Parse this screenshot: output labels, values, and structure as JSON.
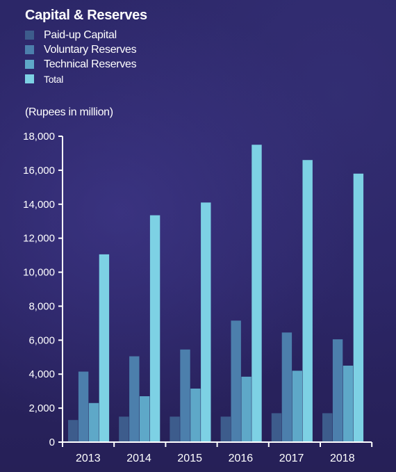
{
  "chart_data": {
    "type": "bar",
    "title": "Capital & Reserves",
    "unit_label": "(Rupees in million)",
    "categories": [
      "2013",
      "2014",
      "2015",
      "2016",
      "2017",
      "2018"
    ],
    "series": [
      {
        "name": "Paid-up Capital",
        "color": "#3d5c8c",
        "values": [
          1300,
          1500,
          1500,
          1500,
          1700,
          1700
        ]
      },
      {
        "name": "Voluntary Reserves",
        "color": "#4c7fac",
        "values": [
          4150,
          5050,
          5450,
          7150,
          6450,
          6050
        ]
      },
      {
        "name": "Technical Reserves",
        "color": "#5ea8c8",
        "values": [
          2300,
          2700,
          3150,
          3850,
          4200,
          4500
        ]
      },
      {
        "name": "Total",
        "color": "#7dd1e4",
        "values": [
          11050,
          13350,
          14100,
          17500,
          16600,
          15800
        ]
      }
    ],
    "ylim": [
      0,
      18000
    ],
    "yticks": [
      "0",
      "2,000",
      "4,000",
      "6,000",
      "8,000",
      "10,000",
      "12,000",
      "14,000",
      "16,000",
      "18,000"
    ],
    "ytick_values": [
      0,
      2000,
      4000,
      6000,
      8000,
      10000,
      12000,
      14000,
      16000,
      18000
    ],
    "axis_color": "#ffffff"
  }
}
